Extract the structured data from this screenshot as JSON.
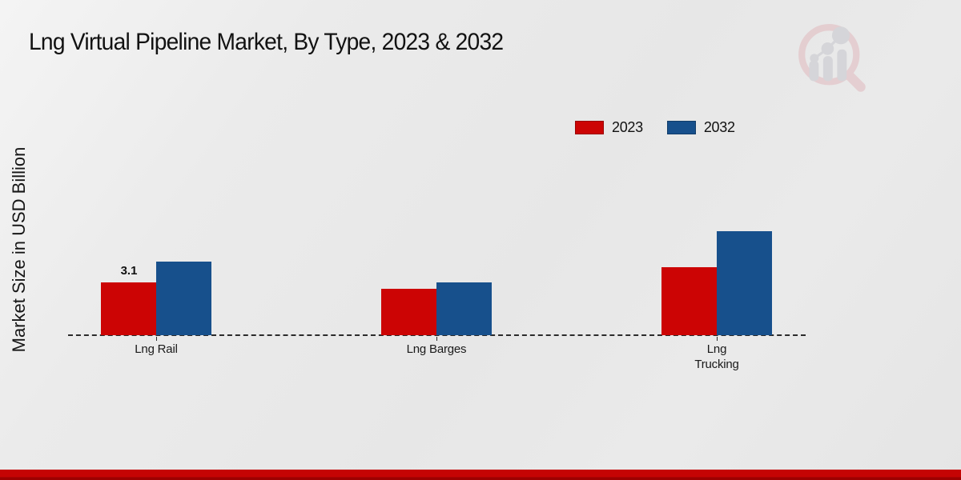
{
  "chart_data": {
    "type": "bar",
    "title": "Lng Virtual Pipeline Market, By Type, 2023 & 2032",
    "xlabel": "",
    "ylabel": "Market Size in USD Billion",
    "categories": [
      "Lng Rail",
      "Lng Barges",
      "Lng Trucking"
    ],
    "series": [
      {
        "name": "2023",
        "color": "#cc0404",
        "values": [
          3.1,
          2.7,
          4.0
        ]
      },
      {
        "name": "2032",
        "color": "#17508c",
        "values": [
          4.3,
          3.1,
          6.1
        ]
      }
    ],
    "data_labels": [
      {
        "series_index": 0,
        "category_index": 0,
        "text": "3.1"
      }
    ],
    "ylim": [
      0,
      7
    ],
    "grid": false,
    "legend_position": "top-right",
    "baseline_style": "dashed"
  },
  "branding": {
    "watermark": "market-research-future-logo",
    "footer_bar_color": "#c50404"
  }
}
